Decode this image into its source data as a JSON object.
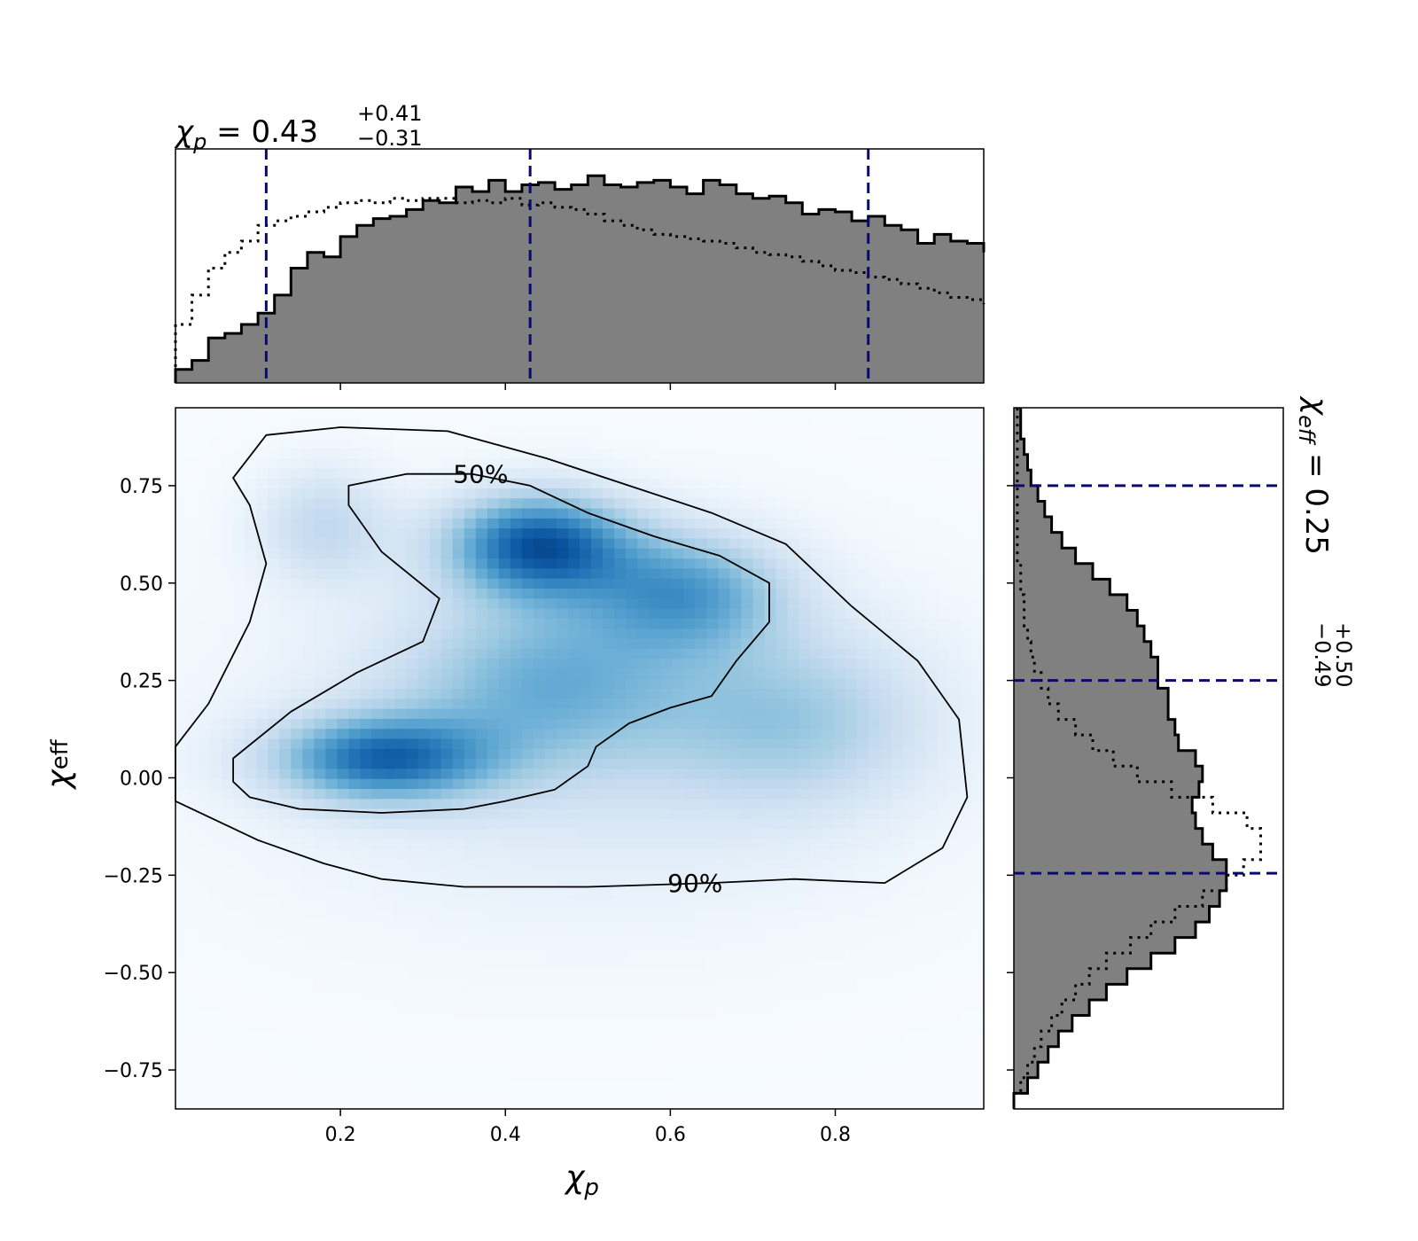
{
  "chart_data": [
    {
      "type": "heatmap",
      "panel": "joint",
      "xlabel_base": "χ",
      "xlabel_sub": "p",
      "ylabel_base": "χ",
      "ylabel_sub": "eff",
      "xlim": [
        0.0,
        0.98
      ],
      "ylim": [
        -0.85,
        0.95
      ],
      "xticks": [
        0.2,
        0.4,
        0.6,
        0.8
      ],
      "xtick_labels": [
        "0.2",
        "0.4",
        "0.6",
        "0.8"
      ],
      "yticks": [
        0.75,
        0.5,
        0.25,
        0.0,
        -0.25,
        -0.5,
        -0.75
      ],
      "ytick_labels": [
        "0.75",
        "0.50",
        "0.25",
        "0.00",
        "−0.25",
        "−0.50",
        "−0.75"
      ],
      "colormap": "Blues",
      "density_peaks": [
        {
          "x": 0.44,
          "y": 0.6,
          "weight": 1.0
        },
        {
          "x": 0.25,
          "y": 0.05,
          "weight": 0.85
        },
        {
          "x": 0.62,
          "y": 0.5,
          "weight": 0.6
        }
      ],
      "contours": [
        {
          "level": "50%",
          "label": "50%",
          "points": [
            [
              0.07,
              -0.01
            ],
            [
              0.09,
              -0.05
            ],
            [
              0.15,
              -0.08
            ],
            [
              0.25,
              -0.09
            ],
            [
              0.35,
              -0.08
            ],
            [
              0.4,
              -0.06
            ],
            [
              0.46,
              -0.03
            ],
            [
              0.5,
              0.03
            ],
            [
              0.51,
              0.08
            ],
            [
              0.55,
              0.14
            ],
            [
              0.6,
              0.18
            ],
            [
              0.65,
              0.21
            ],
            [
              0.68,
              0.3
            ],
            [
              0.72,
              0.4
            ],
            [
              0.72,
              0.5
            ],
            [
              0.66,
              0.57
            ],
            [
              0.58,
              0.62
            ],
            [
              0.5,
              0.68
            ],
            [
              0.43,
              0.75
            ],
            [
              0.36,
              0.78
            ],
            [
              0.28,
              0.78
            ],
            [
              0.21,
              0.75
            ],
            [
              0.21,
              0.7
            ],
            [
              0.25,
              0.58
            ],
            [
              0.32,
              0.46
            ],
            [
              0.3,
              0.35
            ],
            [
              0.22,
              0.27
            ],
            [
              0.14,
              0.17
            ],
            [
              0.07,
              0.05
            ],
            [
              0.07,
              -0.01
            ]
          ]
        },
        {
          "level": "90%",
          "label": "90%",
          "points": [
            [
              0.0,
              0.08
            ],
            [
              0.04,
              0.19
            ],
            [
              0.09,
              0.4
            ],
            [
              0.11,
              0.55
            ],
            [
              0.09,
              0.7
            ],
            [
              0.07,
              0.77
            ],
            [
              0.11,
              0.88
            ],
            [
              0.2,
              0.9
            ],
            [
              0.33,
              0.89
            ],
            [
              0.45,
              0.82
            ],
            [
              0.55,
              0.75
            ],
            [
              0.65,
              0.68
            ],
            [
              0.74,
              0.6
            ],
            [
              0.82,
              0.44
            ],
            [
              0.9,
              0.3
            ],
            [
              0.95,
              0.15
            ],
            [
              0.96,
              -0.05
            ],
            [
              0.93,
              -0.18
            ],
            [
              0.86,
              -0.27
            ],
            [
              0.75,
              -0.26
            ],
            [
              0.65,
              -0.27
            ],
            [
              0.5,
              -0.28
            ],
            [
              0.35,
              -0.28
            ],
            [
              0.25,
              -0.26
            ],
            [
              0.18,
              -0.22
            ],
            [
              0.1,
              -0.16
            ],
            [
              0.0,
              -0.06
            ],
            [
              0.0,
              0.08
            ]
          ]
        }
      ]
    },
    {
      "type": "bar",
      "panel": "top-marginal",
      "title_base": "χ",
      "title_sub": "p",
      "title_value": " = 0.43",
      "title_sup": "+0.41",
      "title_low": "−0.31",
      "xlim": [
        0.0,
        0.98
      ],
      "bin_width": 0.02,
      "quantile_lines": [
        0.11,
        0.43,
        0.84
      ],
      "filled_values": [
        0.06,
        0.1,
        0.2,
        0.22,
        0.26,
        0.31,
        0.39,
        0.51,
        0.58,
        0.56,
        0.65,
        0.7,
        0.73,
        0.74,
        0.77,
        0.81,
        0.8,
        0.87,
        0.85,
        0.9,
        0.85,
        0.88,
        0.89,
        0.86,
        0.88,
        0.92,
        0.88,
        0.87,
        0.89,
        0.9,
        0.87,
        0.84,
        0.9,
        0.88,
        0.84,
        0.82,
        0.83,
        0.8,
        0.75,
        0.77,
        0.76,
        0.72,
        0.74,
        0.7,
        0.68,
        0.62,
        0.66,
        0.63,
        0.62,
        0.58,
        0.55,
        0.5,
        0.48,
        0.47,
        0.45,
        0.43,
        0.38,
        0.34,
        0.32,
        0.31,
        0.29,
        0.26,
        0.24,
        0.22,
        0.2,
        0.18,
        0.17,
        0.15,
        0.14,
        0.12,
        0.1,
        0.09,
        0.07,
        0.06,
        0.05,
        0.04,
        0.03,
        0.03,
        0.02,
        0.01,
        0.01,
        0.01,
        0.01,
        0.01,
        0.01,
        0.01,
        0.01,
        0.01,
        0.01,
        0.01,
        0.01,
        0.01,
        0.01,
        0.01,
        0.01,
        0.01,
        0.01,
        0.01,
        0.01
      ],
      "prior_values": [
        0.26,
        0.39,
        0.51,
        0.58,
        0.63,
        0.7,
        0.72,
        0.74,
        0.76,
        0.78,
        0.8,
        0.81,
        0.8,
        0.82,
        0.81,
        0.82,
        0.82,
        0.8,
        0.81,
        0.8,
        0.82,
        0.79,
        0.8,
        0.78,
        0.77,
        0.75,
        0.72,
        0.7,
        0.68,
        0.66,
        0.65,
        0.64,
        0.63,
        0.62,
        0.6,
        0.58,
        0.57,
        0.56,
        0.54,
        0.52,
        0.5,
        0.49,
        0.47,
        0.46,
        0.44,
        0.42,
        0.4,
        0.38,
        0.37,
        0.35,
        0.34,
        0.32,
        0.31,
        0.3,
        0.28,
        0.27,
        0.25,
        0.24,
        0.22,
        0.21,
        0.2,
        0.18,
        0.17,
        0.15,
        0.14,
        0.13,
        0.12,
        0.1,
        0.09,
        0.08,
        0.07,
        0.06,
        0.05,
        0.04,
        0.04,
        0.03,
        0.03,
        0.02,
        0.02,
        0.01,
        0.01,
        0.01,
        0.01,
        0.01,
        0.01,
        0.01,
        0.01,
        0.01,
        0.01,
        0.01,
        0.01,
        0.01,
        0.01,
        0.01,
        0.01,
        0.01,
        0.01,
        0.01,
        0.01
      ]
    },
    {
      "type": "bar",
      "panel": "right-marginal",
      "orientation": "horizontal",
      "title_base": "χ",
      "title_sub": "eff",
      "title_value": " = 0.25",
      "title_sup": "+0.50",
      "title_low": "−0.49",
      "ylim": [
        -0.85,
        0.95
      ],
      "bin_width": 0.04,
      "quantile_lines": [
        0.75,
        0.25,
        -0.245
      ],
      "filled_values": [
        0.0,
        0.04,
        0.07,
        0.1,
        0.13,
        0.17,
        0.22,
        0.27,
        0.33,
        0.4,
        0.47,
        0.53,
        0.57,
        0.6,
        0.62,
        0.62,
        0.58,
        0.55,
        0.53,
        0.52,
        0.54,
        0.55,
        0.53,
        0.48,
        0.47,
        0.45,
        0.45,
        0.42,
        0.42,
        0.4,
        0.38,
        0.36,
        0.33,
        0.28,
        0.23,
        0.18,
        0.14,
        0.11,
        0.09,
        0.07,
        0.05,
        0.04,
        0.03,
        0.02,
        0.02
      ],
      "prior_values": [
        0.0,
        0.02,
        0.04,
        0.06,
        0.08,
        0.11,
        0.14,
        0.18,
        0.22,
        0.27,
        0.34,
        0.4,
        0.47,
        0.55,
        0.62,
        0.67,
        0.72,
        0.72,
        0.68,
        0.58,
        0.46,
        0.36,
        0.29,
        0.23,
        0.18,
        0.13,
        0.1,
        0.08,
        0.06,
        0.05,
        0.04,
        0.03,
        0.03,
        0.02,
        0.02,
        0.01,
        0.01,
        0.01,
        0.01,
        0.01,
        0.01,
        0.01,
        0.01,
        0.01,
        0.01
      ]
    }
  ]
}
